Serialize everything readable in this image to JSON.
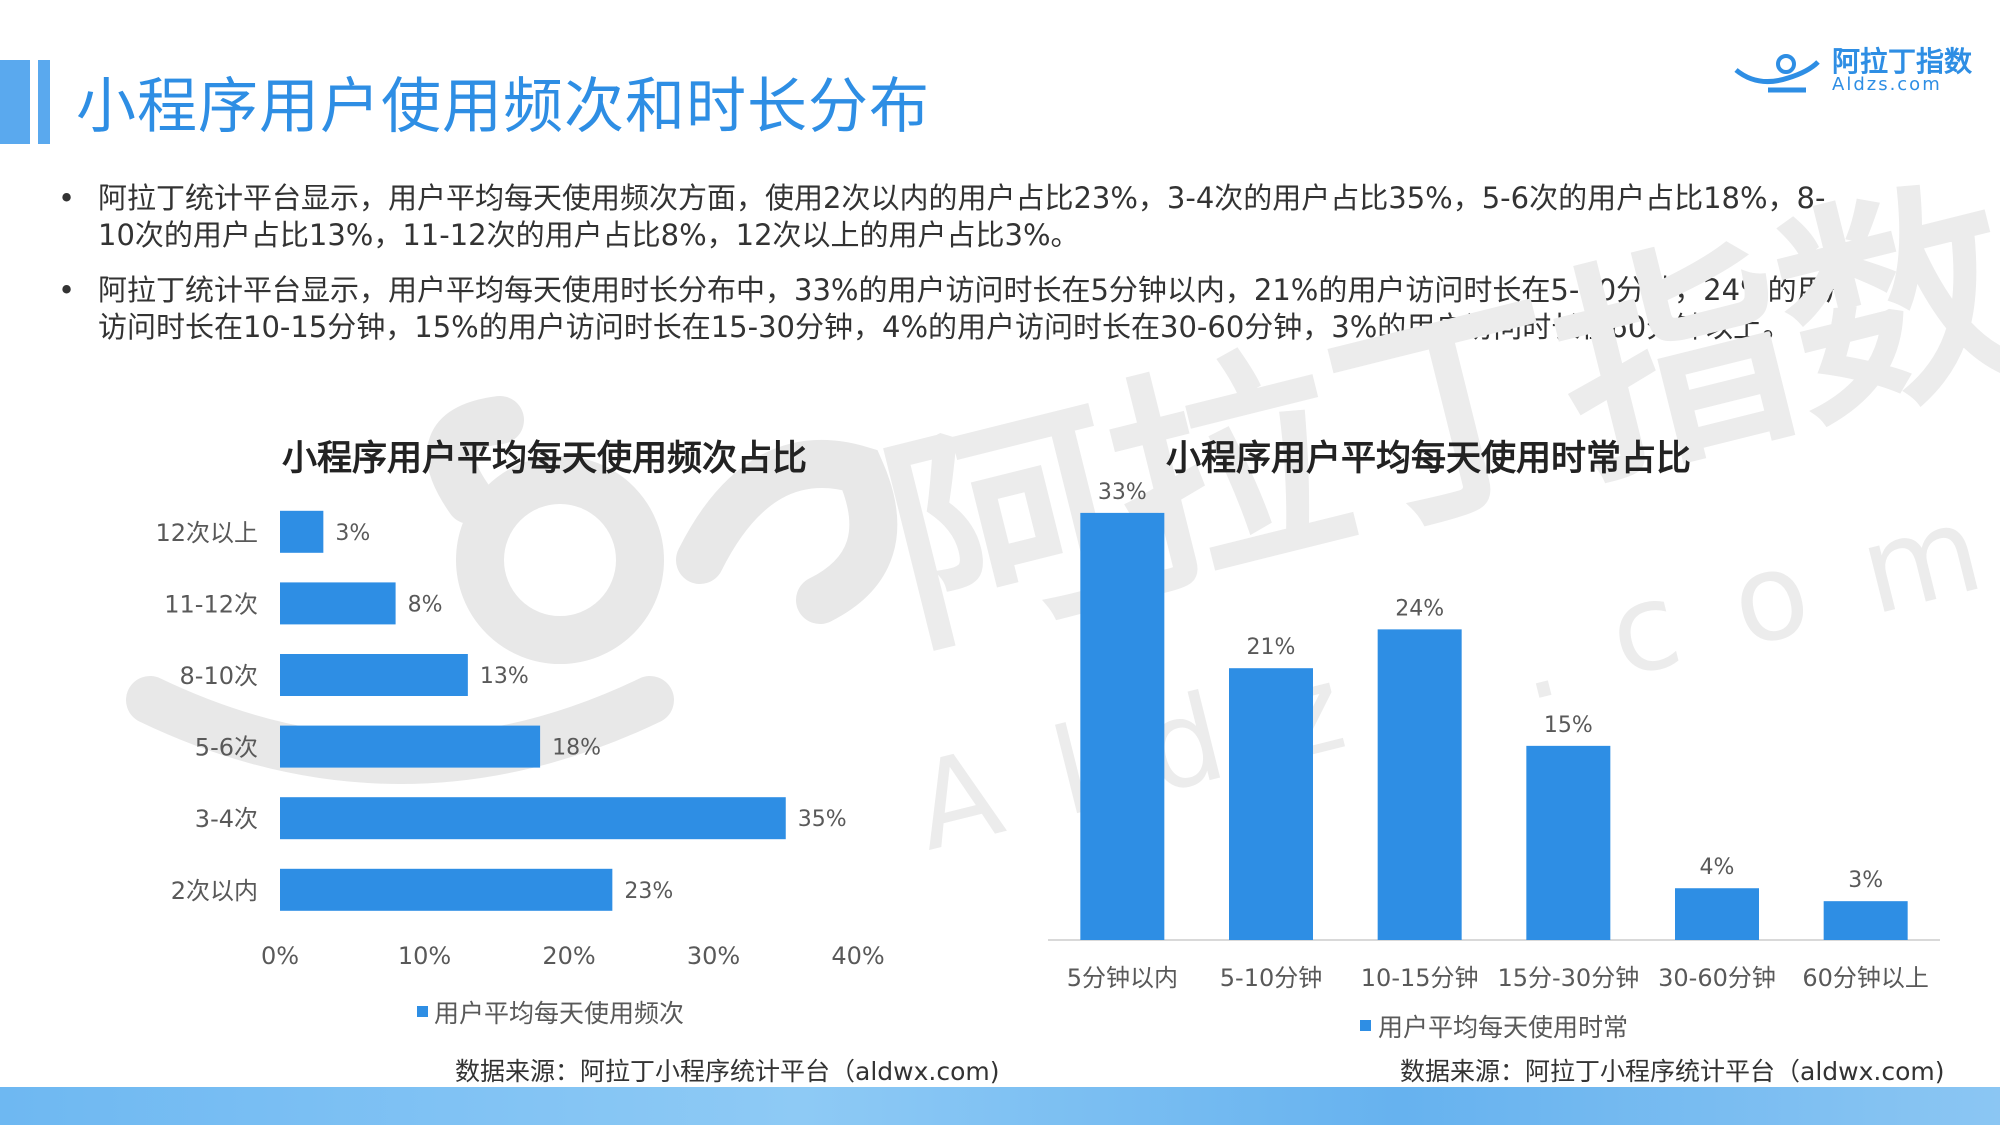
{
  "header": {
    "title": "小程序用户使用频次和时长分布",
    "logo_cn": "阿拉丁指数",
    "logo_en": "Aldzs.com"
  },
  "bullets": [
    "阿拉丁统计平台显示，用户平均每天使用频次方面，使用2次以内的用户占比23%，3-4次的用户占比35%，5-6次的用户占比18%，8-10次的用户占比13%，11-12次的用户占比8%，12次以上的用户占比3%。",
    "阿拉丁统计平台显示，用户平均每天使用时长分布中，33%的用户访问时长在5分钟以内，21%的用户访问时长在5-10分钟，24%的用户访问时长在10-15分钟，15%的用户访问时长在15-30分钟，4%的用户访问时长在30-60分钟，3%的用户访问时长在60分钟以上。"
  ],
  "colors": {
    "bar": "#2e8ee4",
    "title": "#2e8ee4"
  },
  "chart_data": [
    {
      "type": "bar",
      "orientation": "horizontal",
      "title": "小程序用户平均每天使用频次占比",
      "categories": [
        "12次以上",
        "11-12次",
        "8-10次",
        "5-6次",
        "3-4次",
        "2次以内"
      ],
      "series": [
        {
          "name": "用户平均每天使用频次",
          "values": [
            3,
            8,
            13,
            18,
            35,
            23
          ]
        }
      ],
      "value_labels": [
        "3%",
        "8%",
        "13%",
        "18%",
        "35%",
        "23%"
      ],
      "xticks": [
        "0%",
        "10%",
        "20%",
        "30%",
        "40%"
      ],
      "xlim": [
        0,
        40
      ],
      "legend": "bottom",
      "source": "数据来源：阿拉丁小程序统计平台（aldwx.com)"
    },
    {
      "type": "bar",
      "orientation": "vertical",
      "title": "小程序用户平均每天使用时常占比",
      "categories": [
        "5分钟以内",
        "5-10分钟",
        "10-15分钟",
        "15分-30分钟",
        "30-60分钟",
        "60分钟以上"
      ],
      "series": [
        {
          "name": "用户平均每天使用时常",
          "values": [
            33,
            21,
            24,
            15,
            4,
            3
          ]
        }
      ],
      "value_labels": [
        "33%",
        "21%",
        "24%",
        "15%",
        "4%",
        "3%"
      ],
      "ylim": [
        0,
        35
      ],
      "legend": "bottom",
      "source": "数据来源：阿拉丁小程序统计平台（aldwx.com)"
    }
  ]
}
